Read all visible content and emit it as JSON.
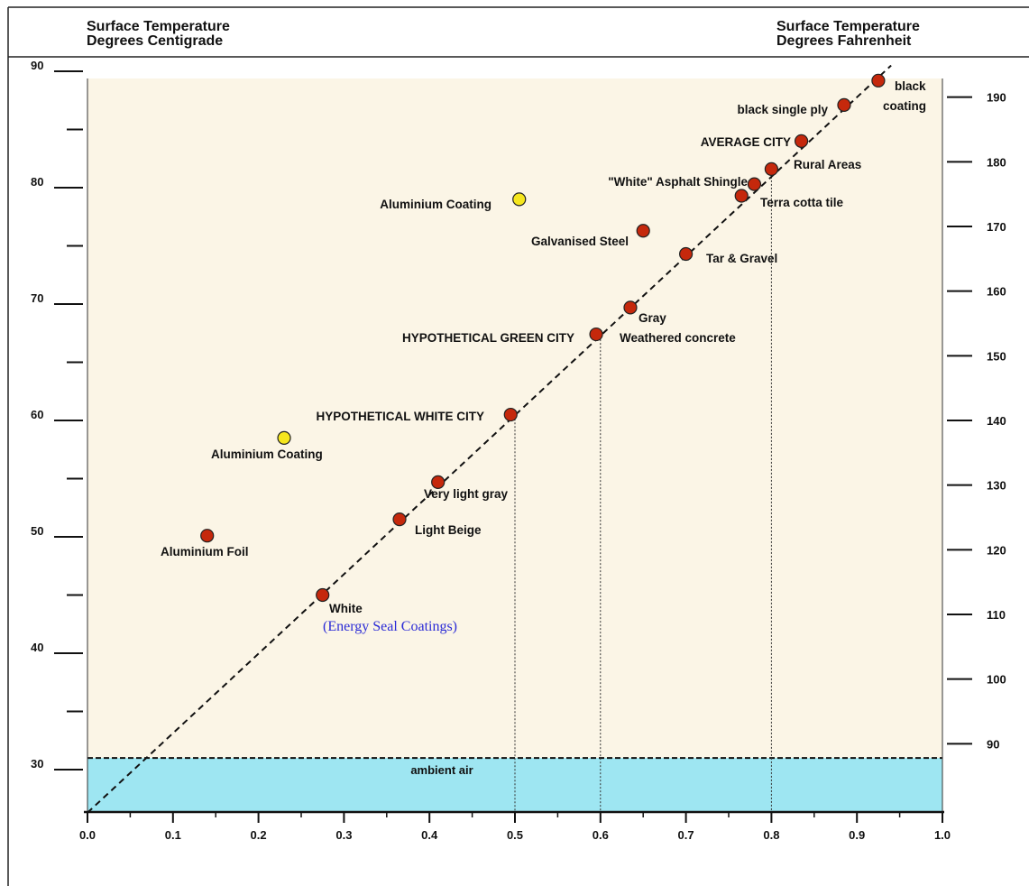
{
  "header": {
    "left_title_line1": "Surface Temperature",
    "left_title_line2": "Degrees Centigrade",
    "right_title_line1": "Surface Temperature",
    "right_title_line2": "Degrees Fahrenheit"
  },
  "colors": {
    "plot_background": "#fbf5e6",
    "ambient_band": "#9ee6f2",
    "point_red": "#c5280c",
    "point_yellow": "#f5e61e",
    "sponsor_text": "#2b2bd6"
  },
  "chart_data": {
    "type": "scatter",
    "xlabel": "",
    "ylabel": "",
    "x_ticks": [
      "0.0",
      "0.1",
      "0.2",
      "0.3",
      "0.4",
      "0.5",
      "0.6",
      "0.7",
      "0.8",
      "0.9",
      "1.0"
    ],
    "y_left_ticks": [
      "30",
      "40",
      "50",
      "60",
      "70",
      "80",
      "90"
    ],
    "y_right_ticks": [
      "90",
      "100",
      "110",
      "120",
      "130",
      "140",
      "150",
      "160",
      "170",
      "180",
      "190"
    ],
    "xlim": [
      0.0,
      1.0
    ],
    "ylim_celsius": [
      26,
      90
    ],
    "ambient_air": {
      "label": "ambient air",
      "celsius": 31
    },
    "trend_line": [
      [
        0.0,
        26.3
      ],
      [
        0.94,
        90.5
      ]
    ],
    "reference_lines_x": [
      0.5,
      0.6,
      0.8
    ],
    "points": [
      {
        "x": 0.14,
        "y": 50.1,
        "color": "red",
        "label": "Aluminium Foil"
      },
      {
        "x": 0.23,
        "y": 58.5,
        "color": "yellow",
        "label": "Aluminium Coating"
      },
      {
        "x": 0.275,
        "y": 45.0,
        "color": "red",
        "label": "White"
      },
      {
        "x": 0.365,
        "y": 51.5,
        "color": "red",
        "label": "Light Beige"
      },
      {
        "x": 0.41,
        "y": 54.7,
        "color": "red",
        "label": "Very light gray"
      },
      {
        "x": 0.495,
        "y": 60.5,
        "color": "red",
        "label": "HYPOTHETICAL WHITE CITY"
      },
      {
        "x": 0.505,
        "y": 79.0,
        "color": "yellow",
        "label": "Aluminium Coating"
      },
      {
        "x": 0.595,
        "y": 67.4,
        "color": "red",
        "label": "HYPOTHETICAL GREEN CITY"
      },
      {
        "x": 0.635,
        "y": 69.7,
        "color": "red",
        "label": "Gray"
      },
      {
        "x": 0.65,
        "y": 76.3,
        "color": "red",
        "label": "Galvanised Steel"
      },
      {
        "x": 0.7,
        "y": 74.3,
        "color": "red",
        "label": "Tar & Gravel"
      },
      {
        "x": 0.765,
        "y": 79.3,
        "color": "red",
        "label": "Terra cotta tile"
      },
      {
        "x": 0.78,
        "y": 80.3,
        "color": "red",
        "label": "\"White\" Asphalt Shingle"
      },
      {
        "x": 0.8,
        "y": 81.6,
        "color": "red",
        "label": "Rural Areas"
      },
      {
        "x": 0.835,
        "y": 84.0,
        "color": "red",
        "label": "AVERAGE CITY"
      },
      {
        "x": 0.885,
        "y": 87.1,
        "color": "red",
        "label": "black single ply"
      },
      {
        "x": 0.925,
        "y": 89.2,
        "color": "red",
        "label": "black"
      }
    ],
    "extra_labels": {
      "weathered": "Weathered concrete",
      "coating": "coating",
      "ambient": "ambient air",
      "sponsor": "(Energy Seal Coatings)"
    }
  }
}
